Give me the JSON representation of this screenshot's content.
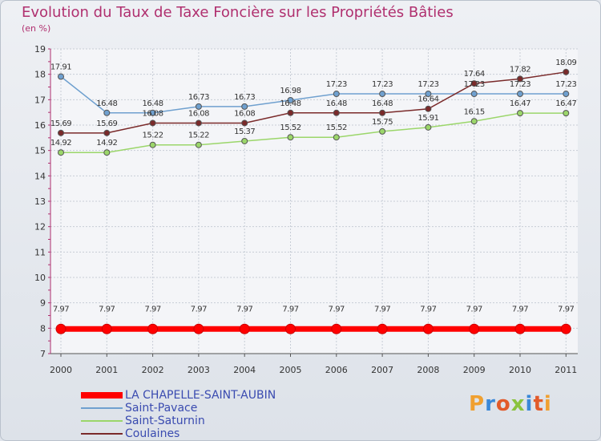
{
  "chart_data": {
    "type": "line",
    "title": "Evolution du Taux de Taxe Foncière sur les Propriétés Bâties",
    "unit_label": "(en %)",
    "x": [
      "2000",
      "2001",
      "2002",
      "2003",
      "2004",
      "2005",
      "2006",
      "2007",
      "2008",
      "2009",
      "2010",
      "2011"
    ],
    "ylim": [
      7,
      19
    ],
    "yticks": [
      "7",
      "8",
      "9",
      "10",
      "11",
      "12",
      "13",
      "14",
      "15",
      "16",
      "17",
      "18",
      "19"
    ],
    "grid": true,
    "legend_position": "bottom-left",
    "series": [
      {
        "name": "LA CHAPELLE-SAINT-AUBIN",
        "color": "#ff0000",
        "labels": [
          "7.97",
          "7.97",
          "7.97",
          "7.97",
          "7.97",
          "7.97",
          "7.97",
          "7.97",
          "7.97",
          "7.97",
          "7.97",
          "7.97"
        ],
        "values": [
          7.97,
          7.97,
          7.97,
          7.97,
          7.97,
          7.97,
          7.97,
          7.97,
          7.97,
          7.97,
          7.97,
          7.97
        ]
      },
      {
        "name": "Saint-Pavace",
        "color": "#6fa0cf",
        "labels": [
          "17.91",
          "16.48",
          "16.48",
          "16.73",
          "16.73",
          "16.98",
          "17.23",
          "17.23",
          "17.23",
          "17.23",
          "17.23",
          "17.23"
        ],
        "values": [
          17.91,
          16.48,
          16.48,
          16.73,
          16.73,
          16.98,
          17.23,
          17.23,
          17.23,
          17.23,
          17.23,
          17.23
        ]
      },
      {
        "name": "Saint-Saturnin",
        "color": "#9bd66a",
        "labels": [
          "14.92",
          "14.92",
          "15.22",
          "15.22",
          "15.37",
          "15.52",
          "15.52",
          "15.75",
          "15.91",
          "16.15",
          "16.47",
          "16.47"
        ],
        "values": [
          14.92,
          14.92,
          15.22,
          15.22,
          15.37,
          15.52,
          15.52,
          15.75,
          15.91,
          16.15,
          16.47,
          16.47
        ]
      },
      {
        "name": "Coulaines",
        "color": "#7a2a2a",
        "labels": [
          "15.69",
          "15.69",
          "16.08",
          "16.08",
          "16.08",
          "16.48",
          "16.48",
          "16.48",
          "16.64",
          "17.64",
          "17.82",
          "18.09"
        ],
        "values": [
          15.69,
          15.69,
          16.08,
          16.08,
          16.08,
          16.48,
          16.48,
          16.48,
          16.64,
          17.64,
          17.82,
          18.09
        ]
      }
    ]
  },
  "branding": {
    "logo_text": "Proxiti"
  }
}
